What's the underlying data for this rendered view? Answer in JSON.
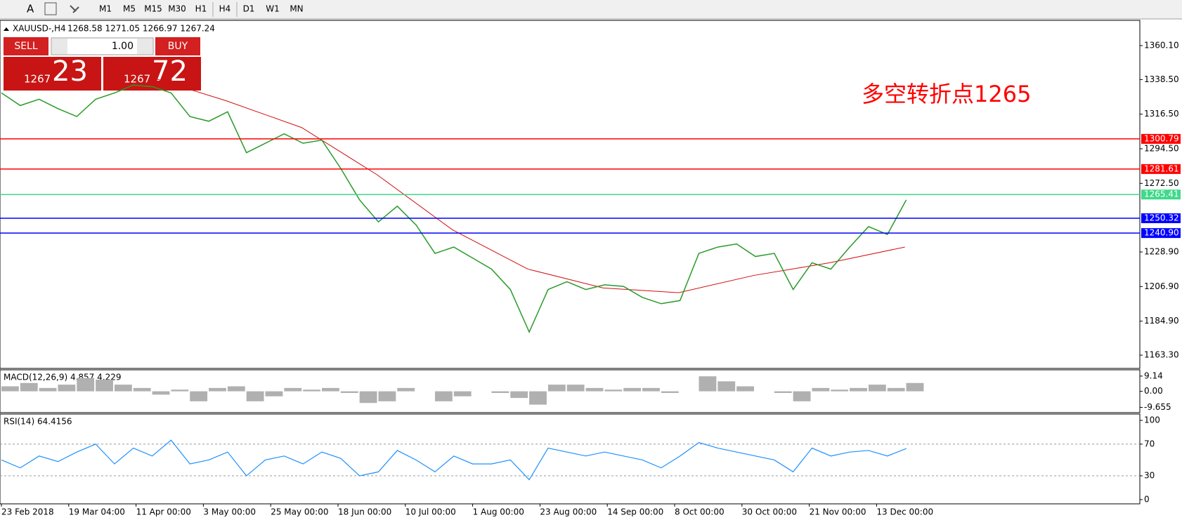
{
  "toolbar": {
    "text_tool": "A",
    "timeframes": [
      "M1",
      "M5",
      "M15",
      "M30",
      "H1",
      "H4",
      "D1",
      "W1",
      "MN"
    ]
  },
  "symbol": {
    "name": "XAUUSD-,H4",
    "ohlc": "1268.58 1271.05 1266.97 1267.24"
  },
  "trade_panel": {
    "sell": "SELL",
    "buy": "BUY",
    "lots": "1.00",
    "sell_prefix": "1267",
    "sell_points": "23",
    "buy_prefix": "1267",
    "buy_points": "72"
  },
  "annotation": "多空转折点1265",
  "price_axis": {
    "ylim": [
      1155.3,
      1375.7
    ],
    "ticks": [
      {
        "value": 1360.1,
        "label": "1360.10"
      },
      {
        "value": 1338.5,
        "label": "1338.50"
      },
      {
        "value": 1316.5,
        "label": "1316.50"
      },
      {
        "value": 1294.5,
        "label": "1294.50"
      },
      {
        "value": 1272.5,
        "label": "1272.50"
      },
      {
        "value": 1228.9,
        "label": "1228.90"
      },
      {
        "value": 1206.9,
        "label": "1206.90"
      },
      {
        "value": 1184.9,
        "label": "1184.90"
      },
      {
        "value": 1163.3,
        "label": "1163.30"
      }
    ]
  },
  "levels": [
    {
      "value": 1300.79,
      "label": "1300.79",
      "color": "#ff0000"
    },
    {
      "value": 1281.61,
      "label": "1281.61",
      "color": "#ff0000"
    },
    {
      "value": 1265.41,
      "label": "1265.41",
      "color": "#3fd98a"
    },
    {
      "value": 1250.32,
      "label": "1250.32",
      "color": "#0000ff"
    },
    {
      "value": 1240.9,
      "label": "1240.90",
      "color": "#0000ff"
    }
  ],
  "price_path": [
    1330,
    1322,
    1326,
    1320,
    1315,
    1326,
    1330,
    1335,
    1334,
    1330,
    1315,
    1312,
    1318,
    1292,
    1298,
    1304,
    1298,
    1300,
    1282,
    1262,
    1248,
    1258,
    1246,
    1228,
    1232,
    1225,
    1218,
    1205,
    1178,
    1205,
    1210,
    1205,
    1208,
    1207,
    1200,
    1196,
    1198,
    1228,
    1232,
    1234,
    1226,
    1228,
    1205,
    1222,
    1218,
    1232,
    1245,
    1240,
    1262
  ],
  "ma_path": [
    null,
    null,
    1340,
    1325,
    1308,
    1278,
    1243,
    1218,
    1206,
    1203,
    1214,
    1222,
    1232
  ],
  "dates": [
    "23 Feb 2018",
    "19 Mar 04:00",
    "11 Apr 00:00",
    "3 May 00:00",
    "25 May 00:00",
    "18 Jun 00:00",
    "10 Jul 00:00",
    "1 Aug 00:00",
    "23 Aug 00:00",
    "14 Sep 00:00",
    "8 Oct 00:00",
    "30 Oct 00:00",
    "21 Nov 00:00",
    "13 Dec 00:00"
  ],
  "macd": {
    "label": "MACD(12,26,9) 4.857 4.229",
    "ylim": [
      -12.8,
      12.9
    ],
    "ticks": [
      {
        "value": 9.14,
        "label": "9.14"
      },
      {
        "value": 0,
        "label": "0.00"
      },
      {
        "value": -9.655,
        "label": "-9.655"
      }
    ],
    "hist": [
      3,
      5,
      2,
      4,
      8,
      7,
      4,
      2,
      -2,
      1,
      -6,
      2,
      3,
      -6,
      -3,
      2,
      1,
      2,
      -1,
      -7,
      -6,
      2,
      0,
      -6,
      -3,
      0,
      -1,
      -4,
      -8,
      4,
      4,
      2,
      1,
      2,
      2,
      -1,
      0,
      9,
      6,
      3,
      0,
      -1,
      -6,
      2,
      1,
      2,
      4,
      2,
      5
    ]
  },
  "rsi": {
    "label": "RSI(14) 64.4156",
    "ylim": [
      -5.4,
      108
    ],
    "ticks": [
      100,
      70,
      30,
      0
    ],
    "values": [
      50,
      40,
      55,
      48,
      60,
      70,
      45,
      65,
      55,
      75,
      45,
      50,
      60,
      30,
      50,
      55,
      45,
      60,
      52,
      30,
      35,
      62,
      50,
      35,
      55,
      45,
      45,
      50,
      25,
      65,
      60,
      55,
      60,
      55,
      50,
      40,
      55,
      72,
      65,
      60,
      55,
      50,
      35,
      65,
      55,
      60,
      62,
      55,
      64.4
    ]
  }
}
